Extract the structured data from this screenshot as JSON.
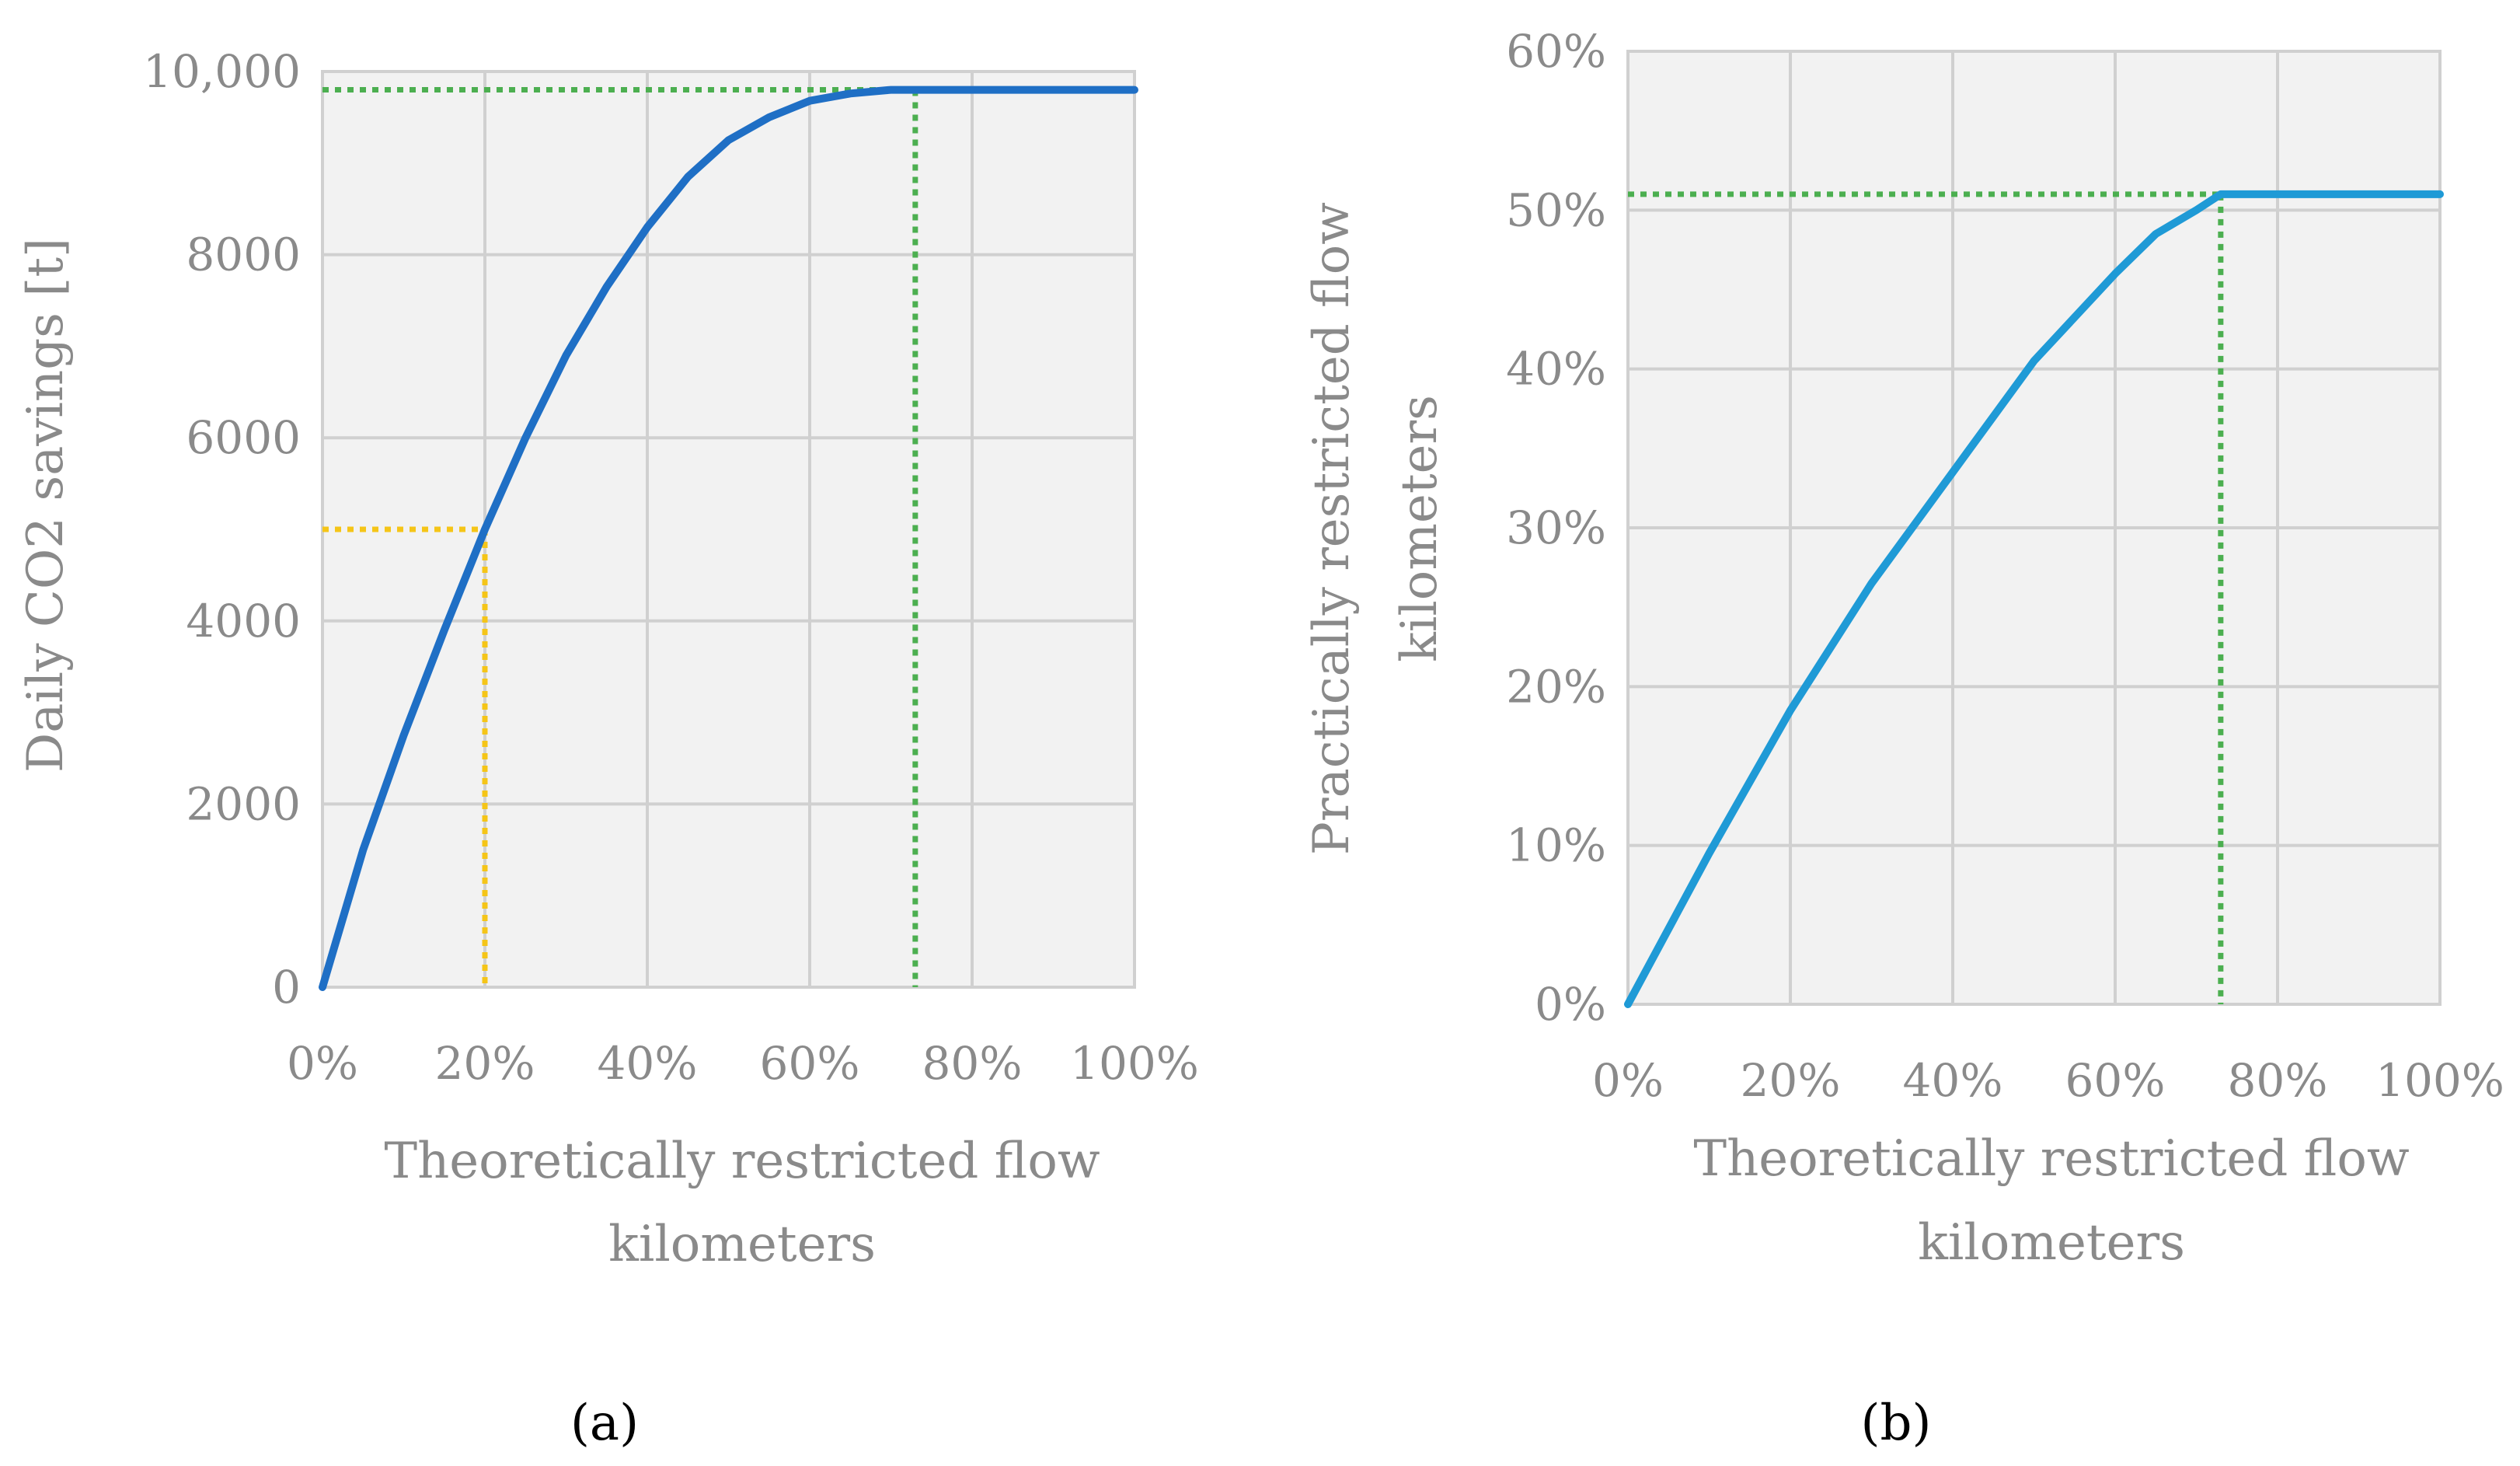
{
  "chart_data": [
    {
      "id": "a",
      "type": "line",
      "panel_label": "(a)",
      "xlabel_lines": [
        "Theoretically restricted flow",
        "kilometers"
      ],
      "ylabel": "Daily CO2  savings [t]",
      "xlim": [
        0,
        100
      ],
      "ylim": [
        0,
        10000
      ],
      "x_ticks": [
        0,
        20,
        40,
        60,
        80,
        100
      ],
      "x_tick_labels": [
        "0%",
        "20%",
        "40%",
        "60%",
        "80%",
        "100%"
      ],
      "y_ticks": [
        0,
        2000,
        4000,
        6000,
        8000,
        10000
      ],
      "y_tick_labels": [
        "0",
        "2000",
        "4000",
        "6000",
        "8000",
        "10,000"
      ],
      "grid": true,
      "series": [
        {
          "name": "Daily CO2 savings",
          "color": "#1f6fc5",
          "x": [
            0,
            5,
            10,
            15,
            20,
            25,
            30,
            35,
            40,
            45,
            50,
            55,
            60,
            65,
            70,
            72,
            80,
            90,
            100
          ],
          "y": [
            0,
            1500,
            2750,
            3900,
            5000,
            6000,
            6900,
            7650,
            8300,
            8850,
            9250,
            9500,
            9680,
            9760,
            9800,
            9800,
            9800,
            9800,
            9800
          ]
        }
      ],
      "reference_lines": [
        {
          "color": "#f5c518",
          "x": 20,
          "y": 5000
        },
        {
          "color": "#4caf50",
          "x": 73,
          "y": 9800
        }
      ]
    },
    {
      "id": "b",
      "type": "line",
      "panel_label": "(b)",
      "xlabel_lines": [
        "Theoretically restricted flow",
        "kilometers"
      ],
      "ylabel_lines": [
        "Practically restricted flow",
        "kilometers"
      ],
      "xlim": [
        0,
        100
      ],
      "ylim": [
        0,
        60
      ],
      "x_ticks": [
        0,
        20,
        40,
        60,
        80,
        100
      ],
      "x_tick_labels": [
        "0%",
        "20%",
        "40%",
        "60%",
        "80%",
        "100%"
      ],
      "y_ticks": [
        0,
        10,
        20,
        30,
        40,
        50,
        60
      ],
      "y_tick_labels": [
        "0%",
        "10%",
        "20%",
        "30%",
        "40%",
        "50%",
        "60%"
      ],
      "grid": true,
      "series": [
        {
          "name": "Practically restricted flow kilometers",
          "color": "#1f9ad6",
          "x": [
            0,
            10,
            20,
            30,
            40,
            50,
            60,
            65,
            70,
            73,
            80,
            90,
            100
          ],
          "y": [
            0,
            9.5,
            18.5,
            26.5,
            33.5,
            40.5,
            46,
            48.5,
            50,
            51,
            51,
            51,
            51
          ]
        }
      ],
      "reference_lines": [
        {
          "color": "#4caf50",
          "x": 73,
          "y": 51
        }
      ]
    }
  ]
}
